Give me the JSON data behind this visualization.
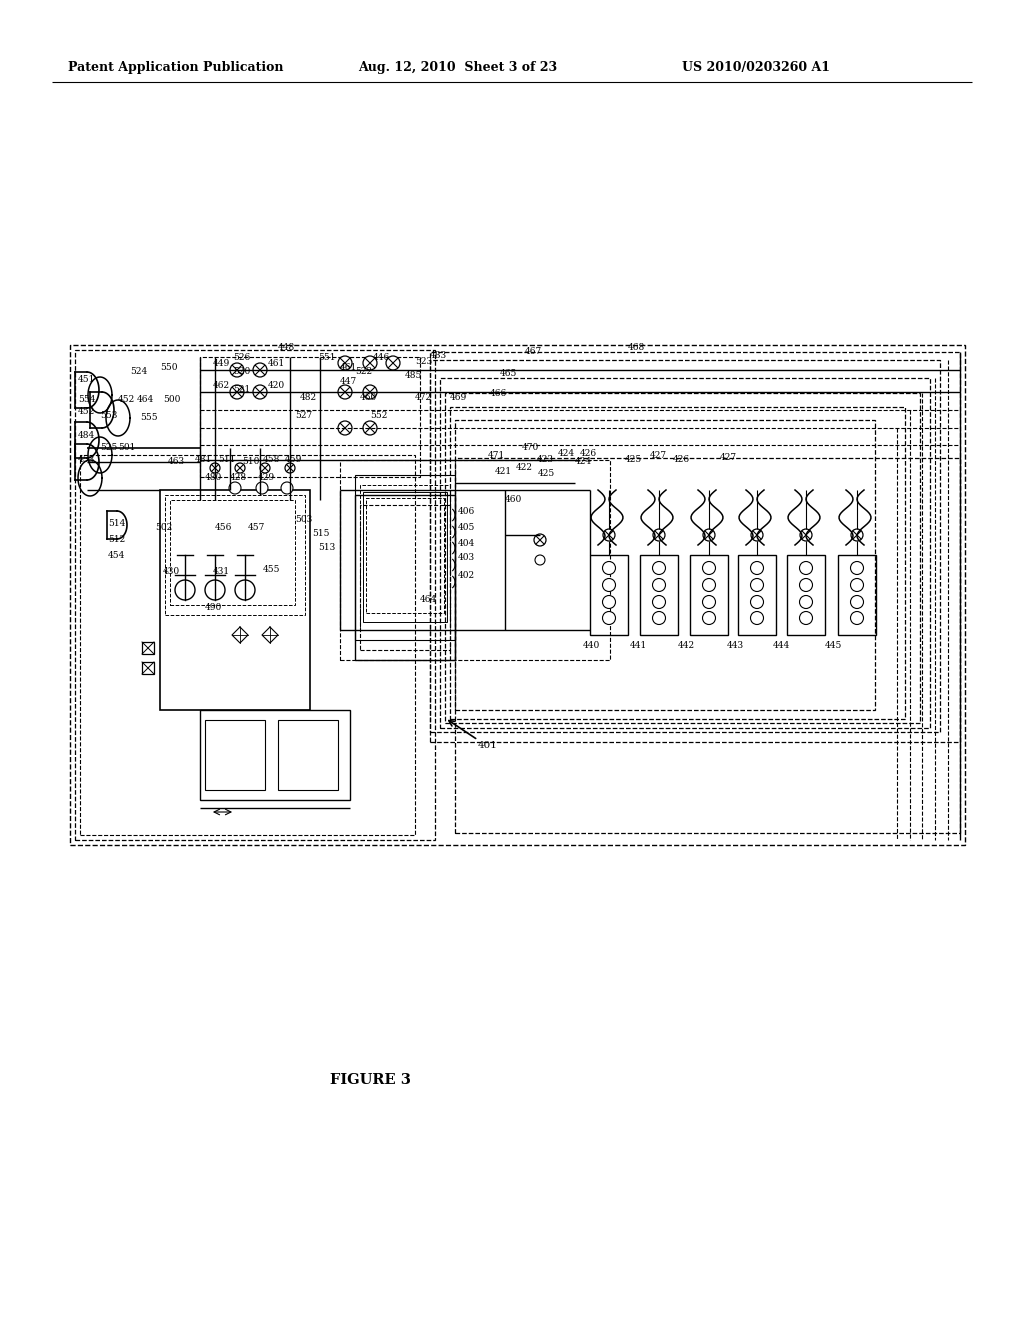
{
  "background_color": "#ffffff",
  "title_left": "Patent Application Publication",
  "title_center": "Aug. 12, 2010  Sheet 3 of 23",
  "title_right": "US 2010/0203260 A1",
  "figure_label": "FIGURE 3"
}
